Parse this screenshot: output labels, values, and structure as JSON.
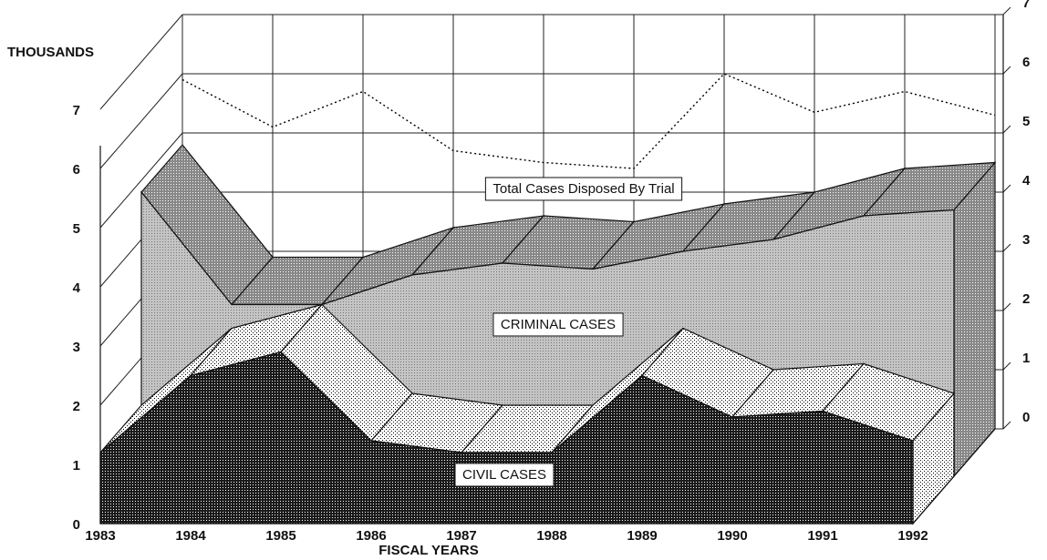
{
  "chart_data": {
    "type": "area3d",
    "ylabel": "THOUSANDS",
    "xlabel": "FISCAL YEARS",
    "categories": [
      "1983",
      "1984",
      "1985",
      "1986",
      "1987",
      "1988",
      "1989",
      "1990",
      "1991",
      "1992"
    ],
    "series": [
      {
        "name": "CIVIL CASES",
        "color": "#1a1a1a",
        "values": [
          1.2,
          2.5,
          2.9,
          1.4,
          1.2,
          1.2,
          2.5,
          1.8,
          1.9,
          1.4
        ]
      },
      {
        "name": "CRIMINAL CASES",
        "color": "#c4c4c4",
        "values": [
          4.8,
          2.9,
          2.9,
          3.4,
          3.6,
          3.5,
          3.8,
          4.0,
          4.4,
          4.5
        ]
      },
      {
        "name": "Total Cases Disposed By Trial",
        "color": "#000000",
        "axis": "y2",
        "values": [
          5.9,
          5.1,
          5.7,
          4.7,
          4.5,
          4.4,
          6.0,
          5.35,
          5.7,
          5.3
        ]
      }
    ],
    "ylim": [
      0,
      7
    ],
    "yticks": [
      0,
      1,
      2,
      3,
      4,
      5,
      6,
      7
    ],
    "y2lim": [
      0,
      7
    ],
    "y2ticks": [
      0,
      1,
      2,
      3,
      4,
      5,
      6,
      7
    ],
    "grid": true
  }
}
